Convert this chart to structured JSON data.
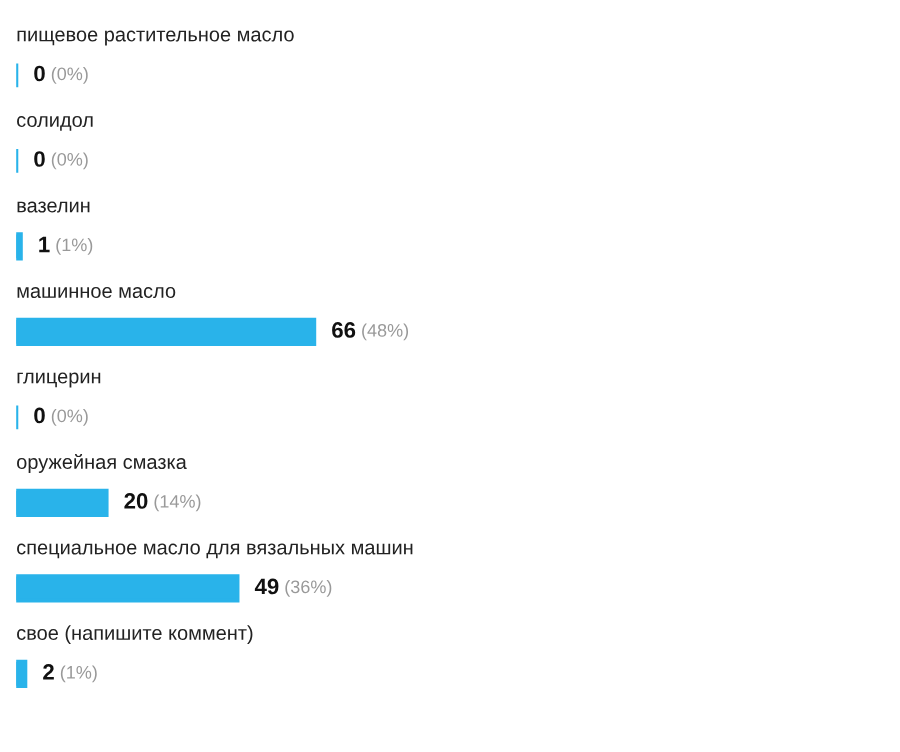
{
  "chart_data": {
    "type": "bar",
    "orientation": "horizontal",
    "categories": [
      "пищевое растительное масло",
      "солидол",
      "вазелин",
      "машинное масло",
      "глицерин",
      "оружейная смазка",
      "специальное масло для вязальных машин",
      "свое (напишите коммент)"
    ],
    "values": [
      0,
      0,
      1,
      66,
      0,
      20,
      49,
      2
    ],
    "value_labels": [
      "0 (0%)",
      "0 (0%)",
      "1 (1%)",
      "66 (48%)",
      "0 (0%)",
      "20 (14%)",
      "49 (36%)",
      "2 (1%)"
    ],
    "color": "#29b3ea"
  }
}
